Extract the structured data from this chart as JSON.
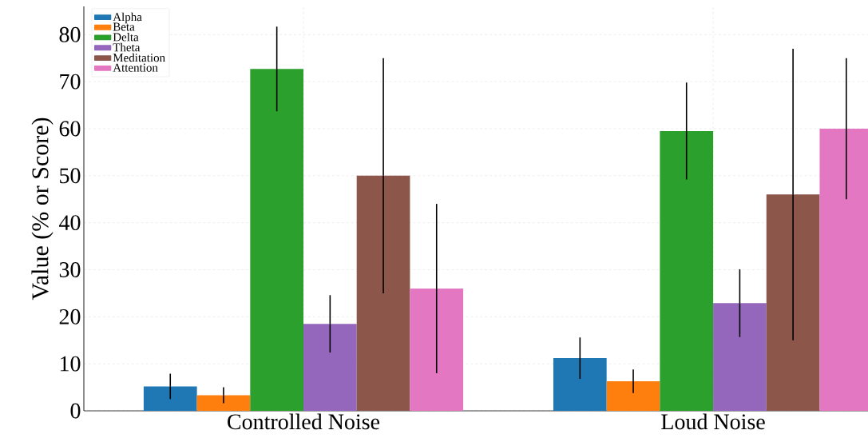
{
  "chart_data": {
    "type": "bar",
    "ylabel": "Value (% or Score)",
    "categories": [
      "Controlled Noise",
      "Loud Noise"
    ],
    "series": [
      {
        "name": "Alpha",
        "color": "#1f77b4",
        "values": [
          5.2,
          11.2
        ],
        "errors": [
          2.7,
          4.4
        ]
      },
      {
        "name": "Beta",
        "color": "#ff7f0e",
        "values": [
          3.3,
          6.3
        ],
        "errors": [
          1.7,
          2.5
        ]
      },
      {
        "name": "Delta",
        "color": "#2ca02c",
        "values": [
          72.7,
          59.5
        ],
        "errors": [
          9,
          10.3
        ]
      },
      {
        "name": "Theta",
        "color": "#9467bd",
        "values": [
          18.5,
          22.9
        ],
        "errors": [
          6.1,
          7.2
        ]
      },
      {
        "name": "Meditation",
        "color": "#8c564b",
        "values": [
          50,
          46
        ],
        "errors": [
          25,
          31
        ]
      },
      {
        "name": "Attention",
        "color": "#e377c2",
        "values": [
          26,
          60
        ],
        "errors": [
          18,
          15
        ]
      }
    ],
    "ylim": [
      0,
      86
    ],
    "yticks": [
      0,
      10,
      20,
      30,
      40,
      50,
      60,
      70,
      80
    ],
    "grid": true,
    "legend": "top left"
  }
}
